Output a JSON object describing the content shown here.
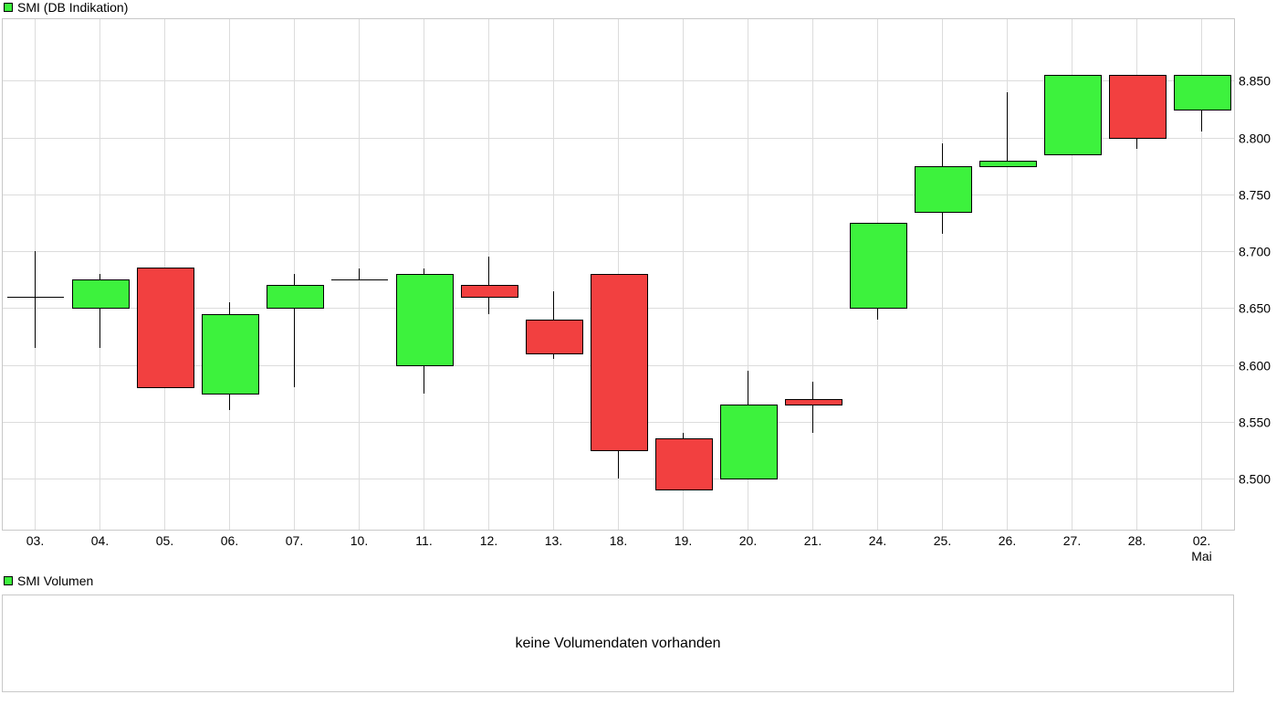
{
  "legend_main": {
    "label": "SMI (DB Indikation)",
    "color": "#3df23d"
  },
  "legend_volume": {
    "label": "SMI Volumen",
    "color": "#3df23d"
  },
  "volume_panel": {
    "message": "keine Volumendaten vorhanden"
  },
  "colors": {
    "up": "#3df23d",
    "down": "#f24040",
    "grid": "#dcdcdc",
    "border": "#c8c8c8"
  },
  "chart_data": {
    "type": "candlestick",
    "grid": true,
    "ylim": [
      8455,
      8905
    ],
    "yticks": [
      8500,
      8550,
      8600,
      8650,
      8700,
      8750,
      8800,
      8850
    ],
    "ytick_labels": [
      "8.500",
      "8.550",
      "8.600",
      "8.650",
      "8.700",
      "8.750",
      "8.800",
      "8.850"
    ],
    "x_sublabel": {
      "index": 18,
      "text": "Mai"
    },
    "candles": [
      {
        "label": "03.",
        "open": 8660,
        "high": 8700,
        "low": 8615,
        "close": 8660
      },
      {
        "label": "04.",
        "open": 8650,
        "high": 8680,
        "low": 8615,
        "close": 8675
      },
      {
        "label": "05.",
        "open": 8686,
        "high": 8686,
        "low": 8580,
        "close": 8580
      },
      {
        "label": "06.",
        "open": 8575,
        "high": 8655,
        "low": 8560,
        "close": 8645
      },
      {
        "label": "07.",
        "open": 8650,
        "high": 8680,
        "low": 8580,
        "close": 8670
      },
      {
        "label": "10.",
        "open": 8675,
        "high": 8685,
        "low": 8675,
        "close": 8675
      },
      {
        "label": "11.",
        "open": 8600,
        "high": 8685,
        "low": 8575,
        "close": 8680
      },
      {
        "label": "12.",
        "open": 8670,
        "high": 8695,
        "low": 8645,
        "close": 8660
      },
      {
        "label": "13.",
        "open": 8640,
        "high": 8665,
        "low": 8605,
        "close": 8610
      },
      {
        "label": "18.",
        "open": 8680,
        "high": 8680,
        "low": 8500,
        "close": 8525
      },
      {
        "label": "19.",
        "open": 8535,
        "high": 8540,
        "low": 8490,
        "close": 8490
      },
      {
        "label": "20.",
        "open": 8500,
        "high": 8595,
        "low": 8500,
        "close": 8565
      },
      {
        "label": "21.",
        "open": 8570,
        "high": 8585,
        "low": 8540,
        "close": 8565
      },
      {
        "label": "24.",
        "open": 8650,
        "high": 8725,
        "low": 8640,
        "close": 8725
      },
      {
        "label": "25.",
        "open": 8735,
        "high": 8795,
        "low": 8715,
        "close": 8775
      },
      {
        "label": "26.",
        "open": 8775,
        "high": 8840,
        "low": 8775,
        "close": 8780
      },
      {
        "label": "27.",
        "open": 8785,
        "high": 8855,
        "low": 8785,
        "close": 8855
      },
      {
        "label": "28.",
        "open": 8855,
        "high": 8855,
        "low": 8790,
        "close": 8800
      },
      {
        "label": "02.",
        "open": 8825,
        "high": 8855,
        "low": 8805,
        "close": 8855
      }
    ]
  }
}
